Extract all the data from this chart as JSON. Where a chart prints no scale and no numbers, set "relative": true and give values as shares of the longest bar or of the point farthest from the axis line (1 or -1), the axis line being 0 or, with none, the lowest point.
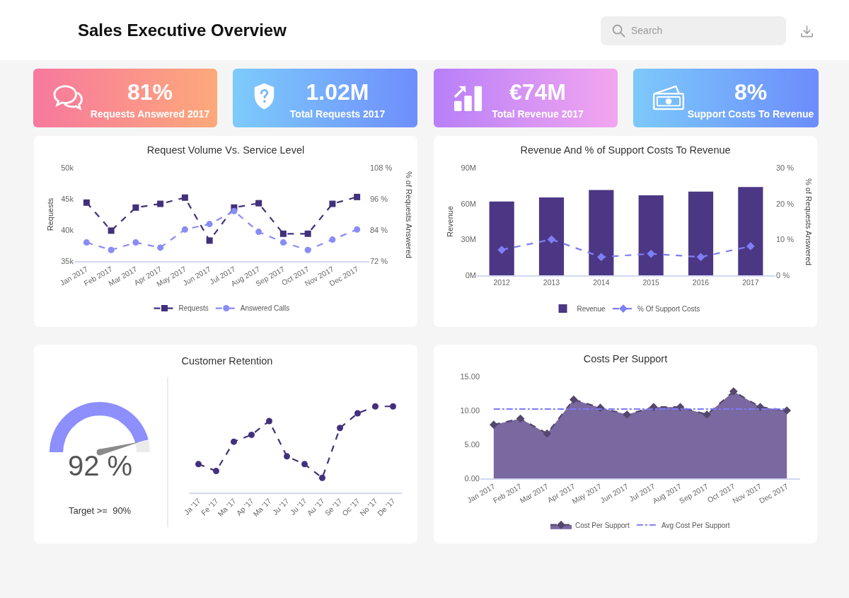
{
  "chart_data": [
    {
      "type": "other",
      "title": "Sales Executive Overview",
      "annotations": [
        "Search"
      ]
    },
    {
      "type": "other",
      "title": "81%",
      "subtitle": "Requests Answered 2017"
    },
    {
      "type": "other",
      "title": "1.02M",
      "subtitle": "Total Requests 2017"
    },
    {
      "type": "other",
      "title": "€74M",
      "subtitle": "Total Revenue 2017"
    },
    {
      "type": "other",
      "title": "8%",
      "subtitle": "Support Costs To Revenue"
    },
    {
      "type": "line",
      "title": "Request Volume Vs. Service Level",
      "categories": [
        "Jan 2017",
        "Feb 2017",
        "Mar 2017",
        "Apr 2017",
        "May 2017",
        "Jun 2017",
        "Jul 2017",
        "Aug 2017",
        "Sep 2017",
        "Oct 2017",
        "Nov 2017",
        "Dec 2017"
      ],
      "ylabel": "Requests",
      "y2label": "% of Requests Answered",
      "ylim": [
        35,
        50
      ],
      "yticks": [
        {
          "value": 35,
          "label": "35k"
        },
        {
          "value": 40,
          "label": "40k"
        },
        {
          "value": 45,
          "label": "45k"
        },
        {
          "value": 50,
          "label": "50k"
        }
      ],
      "y2lim": [
        72,
        108
      ],
      "y2ticks": [
        {
          "value": 72,
          "label": "72 %"
        },
        {
          "value": 84,
          "label": "84 %"
        },
        {
          "value": 96,
          "label": "96 %"
        },
        {
          "value": 108,
          "label": "108 %"
        }
      ],
      "series": [
        {
          "name": "Requests",
          "color": "#41307a",
          "marker": "square",
          "values": [
            44.4,
            39.9,
            43.6,
            44.2,
            45.2,
            38.3,
            43.6,
            44.3,
            39.4,
            39.4,
            44.2,
            45.3
          ]
        },
        {
          "name": "Answered Calls",
          "color": "#8a8cf5",
          "marker": "circle",
          "axis": "y2",
          "values": [
            79.2,
            76.3,
            79.2,
            77.2,
            84.2,
            86.3,
            91.3,
            83.3,
            79.2,
            76.3,
            80.3,
            84.2
          ]
        }
      ],
      "line_style": "dashed",
      "legend": "bottom"
    },
    {
      "type": "bar",
      "title": "Revenue And % of Support Costs To Revenue",
      "categories": [
        "2012",
        "2013",
        "2014",
        "2015",
        "2016",
        "2017"
      ],
      "ylabel": "Revenue",
      "y2label": "% of Requests Answered",
      "ylim": [
        0,
        90
      ],
      "yticks": [
        {
          "value": 0,
          "label": "0M"
        },
        {
          "value": 30,
          "label": "30M"
        },
        {
          "value": 60,
          "label": "60M"
        },
        {
          "value": 90,
          "label": "90M"
        }
      ],
      "y2lim": [
        0,
        30
      ],
      "y2ticks": [
        {
          "value": 0,
          "label": "0 %"
        },
        {
          "value": 10,
          "label": "10 %"
        },
        {
          "value": 20,
          "label": "20 %"
        },
        {
          "value": 30,
          "label": "30 %"
        }
      ],
      "series": [
        {
          "name": "Revenue",
          "color": "#4b3784",
          "values": [
            61.7,
            65.1,
            71.4,
            66.9,
            70.0,
            73.8
          ]
        },
        {
          "name": "% Of Support Costs",
          "type": "line",
          "axis": "y2",
          "color": "#7e7ef5",
          "marker": "diamond",
          "line_style": "dashed",
          "values": [
            7.1,
            10.0,
            5.1,
            6.0,
            5.1,
            8.1
          ]
        }
      ],
      "legend": "bottom"
    },
    {
      "type": "donut",
      "categories": [
        null,
        null
      ],
      "values": [
        92,
        8
      ],
      "colors": [
        "#8c8ffc",
        "#ebebeb"
      ],
      "needle": null,
      "annotations": [
        "92 %",
        "Target >=  90%"
      ]
    },
    {
      "type": "line",
      "title": "Customer Retention",
      "relative": true,
      "categories": [
        "Ja '17",
        "Fe '17",
        "Ma '17",
        "Ap '17",
        "Ma '17",
        "Ju '17",
        "Ju '17",
        "Au '17",
        "Se '17",
        "Oc '17",
        "No '17",
        "De '17"
      ],
      "series": [
        {
          "color": "#42307d",
          "values": [
            0.33,
            0.25,
            0.59,
            0.67,
            0.83,
            0.42,
            0.33,
            0.17,
            0.75,
            0.92,
            1,
            1
          ]
        }
      ],
      "marker": "circle",
      "line_style": "dashed"
    },
    {
      "type": "area",
      "title": "Costs Per Support",
      "categories": [
        "Jan 2017",
        "Feb 2017",
        "Mar 2017",
        "Apr 2017",
        "May 2017",
        "Jun 2017",
        "Jul 2017",
        "Aug 2017",
        "Sep 2017",
        "Oct 2017",
        "Nov 2017",
        "Dec 2017"
      ],
      "ylim": [
        0,
        15
      ],
      "yticks": [
        {
          "value": 0,
          "label": "0.00"
        },
        {
          "value": 5,
          "label": "5.00"
        },
        {
          "value": 10,
          "label": "10.00"
        },
        {
          "value": 15,
          "label": "15.00"
        }
      ],
      "series": [
        {
          "name": "Cost Per Support",
          "color": "#7a68a0",
          "values": [
            7.9,
            8.8,
            6.6,
            11.6,
            10.4,
            9.4,
            10.5,
            10.5,
            9.4,
            12.8,
            10.5,
            10.0
          ]
        }
      ],
      "marker": "diamond",
      "line_style": "dashed",
      "ref_lines": [
        {
          "axis": "y",
          "value": 10.2,
          "label": "Avg Cost Per Support",
          "color": "#7b7bf5",
          "line_style": "dashdot"
        }
      ],
      "legend": "bottom"
    }
  ]
}
